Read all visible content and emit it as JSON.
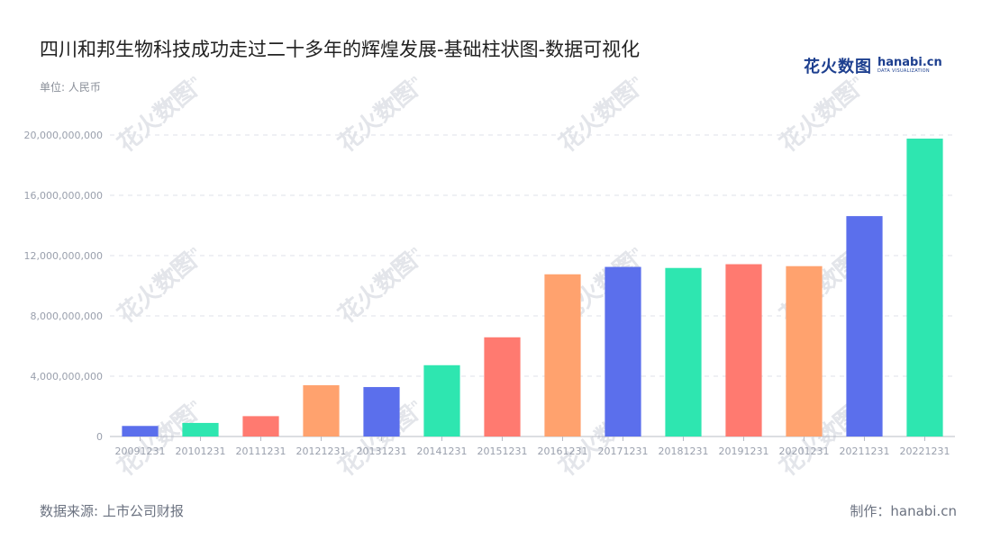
{
  "title": "四川和邦生物科技成功走过二十多年的辉煌发展-基础柱状图-数据可视化",
  "unit": "单位: 人民币",
  "logo": {
    "cn": "花火数图",
    "en": "hanabi.cn",
    "sub": "DATA VISUALIZATION"
  },
  "source": "数据来源: 上市公司财报",
  "maker": "制作：hanabi.cn",
  "watermark": {
    "cn": "花火数图",
    "en": "hanabi.cn"
  },
  "colors": [
    "#5b6fec",
    "#2ee6b0",
    "#ff7a70",
    "#ffa26e"
  ],
  "chart_data": {
    "type": "bar",
    "categories": [
      "20091231",
      "20101231",
      "20111231",
      "20121231",
      "20131231",
      "20141231",
      "20151231",
      "20161231",
      "20171231",
      "20181231",
      "20191231",
      "20201231",
      "20211231",
      "20221231"
    ],
    "values": [
      700000000,
      900000000,
      1350000000,
      3400000000,
      3280000000,
      4730000000,
      6580000000,
      10760000000,
      11250000000,
      11180000000,
      11430000000,
      11300000000,
      14620000000,
      19760000000
    ],
    "ylim": [
      0,
      20000000000
    ],
    "yticks": [
      0,
      4000000000,
      8000000000,
      12000000000,
      16000000000,
      20000000000
    ],
    "ytick_labels": [
      "0",
      "4,000,000,000",
      "8,000,000,000",
      "12,000,000,000",
      "16,000,000,000",
      "20,000,000,000"
    ],
    "bar_colors": [
      "#5b6fec",
      "#2ee6b0",
      "#ff7a70",
      "#ffa26e",
      "#5b6fec",
      "#2ee6b0",
      "#ff7a70",
      "#ffa26e",
      "#5b6fec",
      "#2ee6b0",
      "#ff7a70",
      "#ffa26e",
      "#5b6fec",
      "#2ee6b0"
    ],
    "grid": true,
    "legend": "none"
  }
}
